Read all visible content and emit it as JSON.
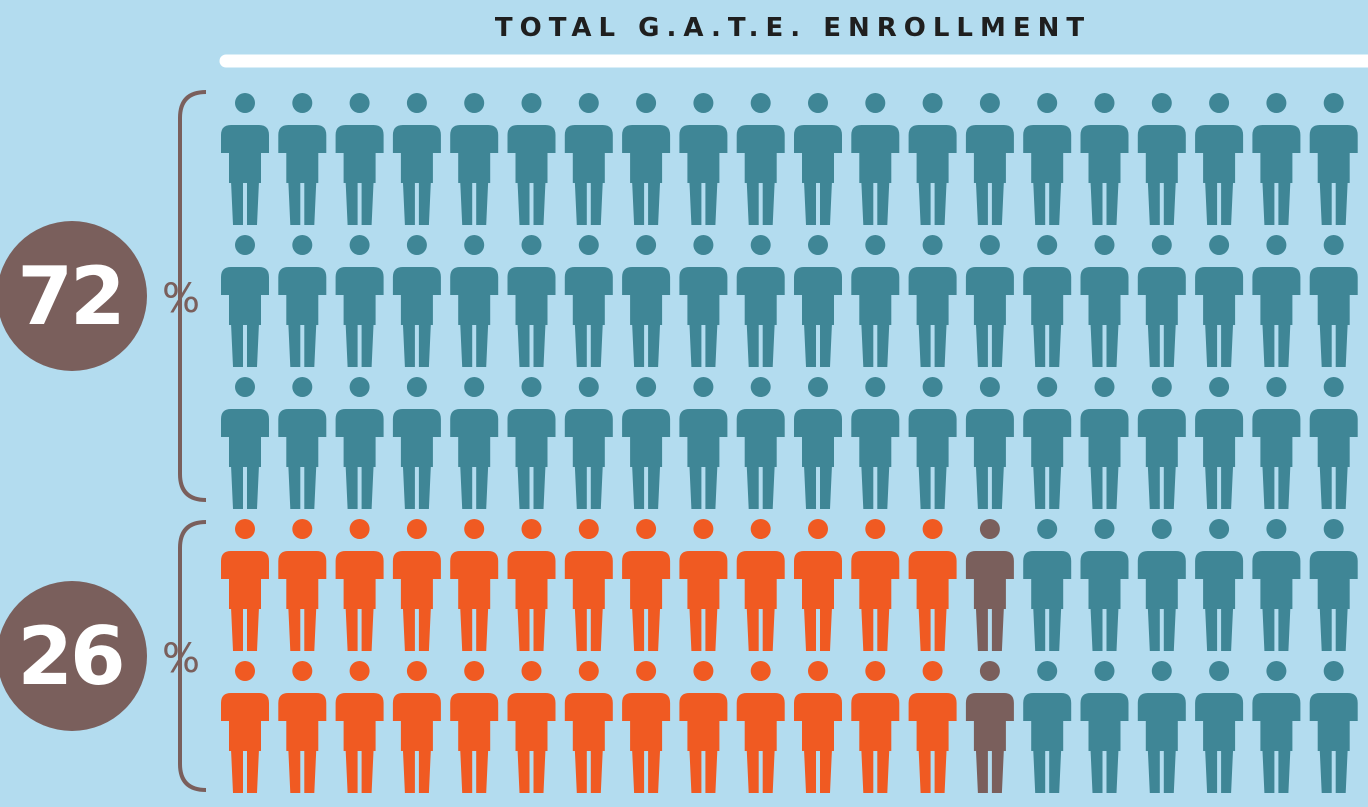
{
  "chart_data": {
    "type": "pictograph",
    "title": "TOTAL G.A.T.E. ENROLLMENT",
    "values": [
      72,
      26,
      2
    ],
    "unit": "%",
    "colors": [
      "#3f8696",
      "#f05a22",
      "#7a5f5c"
    ],
    "label_color": "#7a5f5c"
  }
}
